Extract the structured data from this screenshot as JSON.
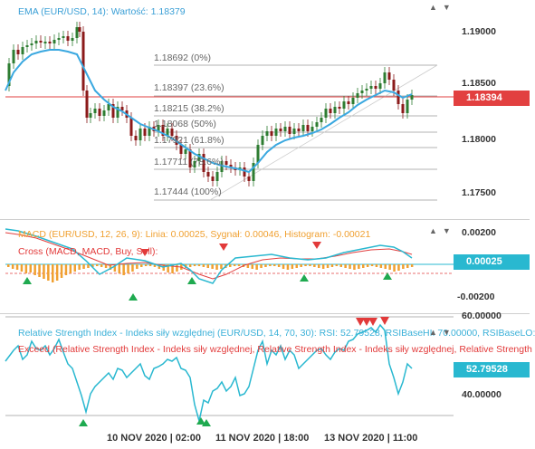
{
  "ema": {
    "label": "EMA (EUR/USD, 14): Wartość: 1.18379",
    "price_ticks": [
      "1.19000",
      "1.18500",
      "1.18000",
      "1.17500"
    ],
    "current_price": "1.18394",
    "fib_levels": [
      "1.18692 (0%)",
      "1.18397 (23.6%)",
      "1.18215 (38.2%)",
      "1.18068 (50%)",
      "1.17921 (61.8%)",
      "1.17711 (78.6%)",
      "1.17444 (100%)"
    ]
  },
  "macd": {
    "label": "MACD (EUR/USD, 12, 26, 9): Linia: 0.00025, Sygnał: 0.00046, Histogram: -0.00021",
    "cross_label": "Cross (MACD, MACD, Buy, Sell):",
    "ticks": [
      "0.00200",
      "-0.00200"
    ],
    "current": "0.00025"
  },
  "rsi": {
    "label": "Relative Strength Index - Indeks siły względnej (EUR/USD, 14, 70, 30): RSI: 52.79528, RSIBaseHI: 70.00000, RSIBaseLO:",
    "exceed_label": "Exceed (Relative Strength Index - Indeks siły względnej, Relative Strength Index - Indeks siły względnej, Relative Strength",
    "ticks": [
      "60.00000",
      "40.00000"
    ],
    "current": "52.79528"
  },
  "x_axis": [
    "10 NOV 2020 | 02:00",
    "11 NOV 2020 | 18:00",
    "13 NOV 2020 | 11:00"
  ],
  "controls": {
    "up": "▲",
    "down": "▼"
  },
  "colors": {
    "ema_line": "#3aa8e0",
    "candle_up": "#2e7d32",
    "candle_down": "#8b1a1a",
    "price_line": "#e24040",
    "macd_line": "#29b8d0",
    "signal_line": "#e24040",
    "histogram": "#f0a030",
    "rsi_line": "#29b8d0"
  }
}
